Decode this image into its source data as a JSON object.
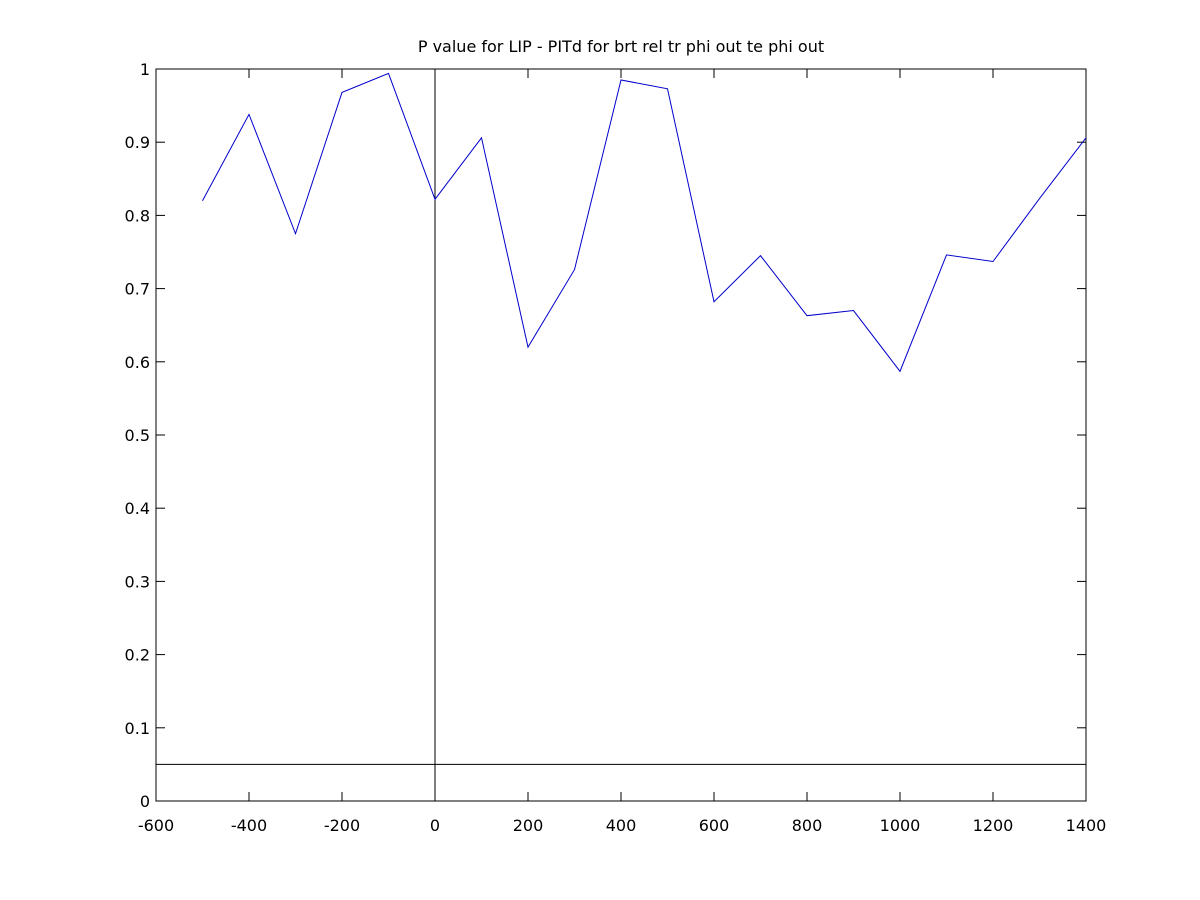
{
  "chart_data": {
    "type": "line",
    "title": "P value for LIP - PITd for brt rel tr phi out te phi out",
    "xlabel": "",
    "ylabel": "",
    "xlim": [
      -600,
      1400
    ],
    "ylim": [
      0,
      1
    ],
    "x_ticks": [
      -600,
      -400,
      -200,
      0,
      200,
      400,
      600,
      800,
      1000,
      1200,
      1400
    ],
    "x_tick_labels": [
      "-600",
      "-400",
      "-200",
      "0",
      "200",
      "400",
      "600",
      "800",
      "1000",
      "1200",
      "1400"
    ],
    "y_ticks": [
      0,
      0.1,
      0.2,
      0.3,
      0.4,
      0.5,
      0.6,
      0.7,
      0.8,
      0.9,
      1
    ],
    "y_tick_labels": [
      "0",
      "0.1",
      "0.2",
      "0.3",
      "0.4",
      "0.5",
      "0.6",
      "0.7",
      "0.8",
      "0.9",
      "1"
    ],
    "grid": false,
    "legend": "none",
    "series": [
      {
        "color": "#0000cc",
        "x": [
          -500,
          -400,
          -300,
          -200,
          -100,
          0,
          100,
          200,
          300,
          400,
          500,
          600,
          700,
          800,
          900,
          1000,
          1100,
          1200,
          1300,
          1400
        ],
        "y": [
          0.82,
          0.938,
          0.775,
          0.968,
          0.994,
          0.822,
          0.906,
          0.62,
          0.726,
          0.985,
          0.973,
          0.682,
          0.745,
          0.663,
          0.67,
          0.587,
          0.746,
          0.737,
          0.823,
          0.906
        ]
      }
    ],
    "reference_lines": [
      {
        "orientation": "horizontal",
        "value": 0.05,
        "color": "#000000"
      },
      {
        "orientation": "vertical",
        "value": 0,
        "color": "#000000"
      }
    ]
  }
}
